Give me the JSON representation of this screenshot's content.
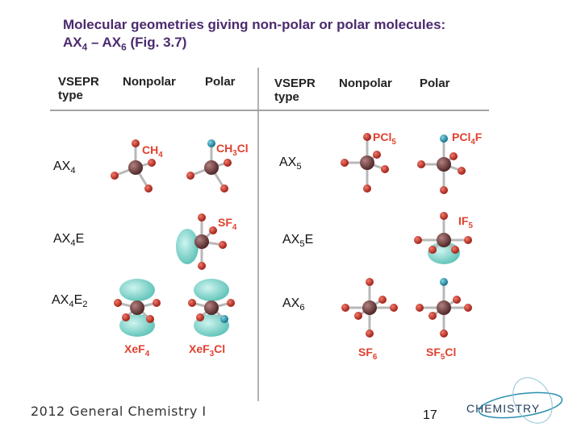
{
  "title": {
    "line1": "Molecular geometries giving non-polar or polar molecules:",
    "line2_prefix": "AX",
    "line2_sub1": "4",
    "line2_mid": " – AX",
    "line2_sub2": "6",
    "line2_suffix": " (Fig. 3.7)"
  },
  "headers": {
    "vsepr_line1": "VSEPR",
    "vsepr_line2": "type",
    "nonpolar": "Nonpolar",
    "polar": "Polar"
  },
  "types": {
    "ax4": {
      "base": "AX",
      "sub": "4"
    },
    "ax4e": {
      "base": "AX",
      "sub": "4",
      "e": "E"
    },
    "ax4e2": {
      "base": "AX",
      "sub": "4",
      "e": "E",
      "esub": "2"
    },
    "ax5": {
      "base": "AX",
      "sub": "5"
    },
    "ax5e": {
      "base": "AX",
      "sub": "5",
      "e": "E"
    },
    "ax6": {
      "base": "AX",
      "sub": "6"
    }
  },
  "molecules": {
    "ch4": {
      "a": "CH",
      "s": "4"
    },
    "ch3cl": {
      "a": "CH",
      "s": "3",
      "b": "Cl"
    },
    "sf4": {
      "a": "SF",
      "s": "4"
    },
    "xef4": {
      "a": "XeF",
      "s": "4"
    },
    "xef3cl": {
      "a": "XeF",
      "s": "3",
      "b": "Cl"
    },
    "pcl5": {
      "a": "PCl",
      "s": "5"
    },
    "pcl4f": {
      "a": "PCl",
      "s": "4",
      "b": "F"
    },
    "if5": {
      "a": "IF",
      "s": "5"
    },
    "sf6": {
      "a": "SF",
      "s": "6"
    },
    "sf5cl": {
      "a": "SF",
      "s": "5",
      "b": "Cl"
    }
  },
  "footer": "2012 General Chemistry I",
  "page_number": "17",
  "logo_text": "CHEMISTRY",
  "colors": {
    "title": "#4b2a6e",
    "label": "#e0402e",
    "central_atom": "#6b3a3a",
    "outer_atom": "#c8281e",
    "polar_atom": "#1f8fa8",
    "lone_pair": "#49c3b8"
  }
}
